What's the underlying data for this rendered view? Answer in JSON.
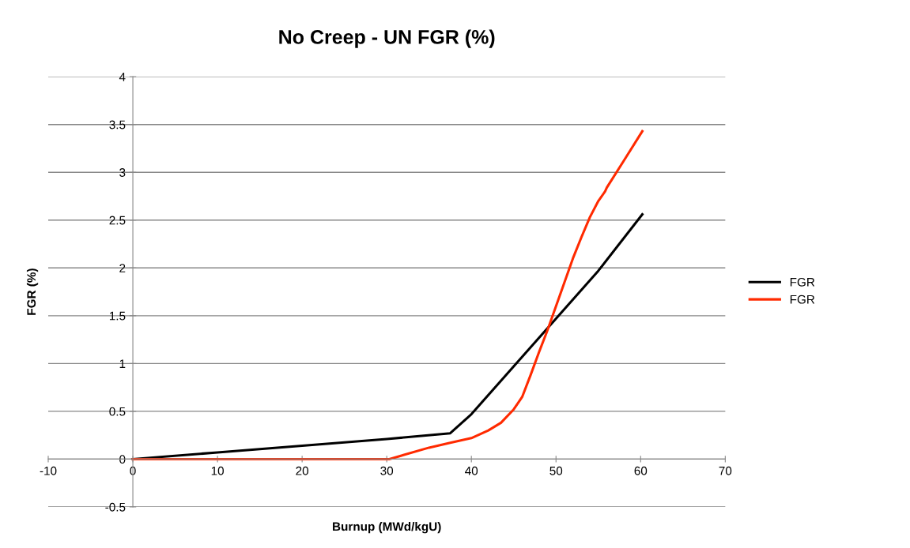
{
  "chart_data": {
    "type": "line",
    "title": "No Creep - UN FGR (%)",
    "xlabel": "Burnup (MWd/kgU)",
    "ylabel": "FGR (%)",
    "xlim": [
      -10,
      70
    ],
    "xticks": [
      -10,
      0,
      10,
      20,
      30,
      40,
      50,
      60,
      70
    ],
    "ylim": [
      -0.5,
      4
    ],
    "yticks": [
      -0.5,
      0,
      0.5,
      1,
      1.5,
      2,
      2.5,
      3,
      3.5,
      4
    ],
    "grid": "y",
    "legend": "right",
    "marker": "none",
    "line_style": "solid",
    "series": [
      {
        "name": "FGR",
        "color": "#000000",
        "x": [
          0,
          10,
          20,
          30,
          37.5,
          40,
          45,
          50,
          55,
          60.2
        ],
        "values": [
          0,
          0.07,
          0.14,
          0.21,
          0.27,
          0.47,
          0.97,
          1.47,
          1.97,
          2.56
        ]
      },
      {
        "name": "FGR",
        "color": "#ff2a00",
        "x": [
          0,
          10,
          20,
          30.3,
          35,
          37.5,
          40,
          42,
          43.5,
          45,
          46,
          47,
          48,
          49,
          50,
          51,
          52,
          53,
          54,
          55,
          55.8,
          56,
          58,
          60.2
        ],
        "values": [
          0,
          0,
          0,
          0,
          0.12,
          0.17,
          0.22,
          0.3,
          0.38,
          0.52,
          0.65,
          0.88,
          1.12,
          1.35,
          1.6,
          1.85,
          2.1,
          2.32,
          2.53,
          2.7,
          2.8,
          2.84,
          3.12,
          3.43
        ]
      }
    ]
  }
}
